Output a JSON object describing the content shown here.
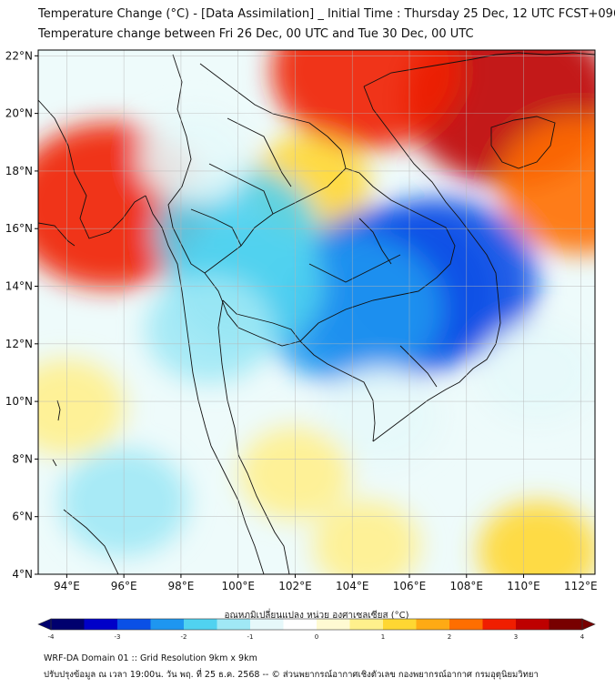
{
  "header": {
    "title_line1": "Temperature Change (°C) - [Data Assimilation] _ Initial Time : Thursday 25 Dec, 12 UTC FCST+096",
    "title_line2": "Temperature change between Fri 26 Dec, 00 UTC and Tue 30 Dec, 00 UTC"
  },
  "map": {
    "lat_labels": [
      "22°N",
      "20°N",
      "18°N",
      "16°N",
      "14°N",
      "12°N",
      "10°N",
      "8°N",
      "6°N",
      "4°N"
    ],
    "lon_labels": [
      "94°E",
      "96°E",
      "98°E",
      "100°E",
      "102°E",
      "104°E",
      "106°E",
      "108°E",
      "110°E",
      "112°E"
    ],
    "lat_values": [
      22,
      20,
      18,
      16,
      14,
      12,
      10,
      8,
      6,
      4
    ],
    "lon_values": [
      94,
      96,
      98,
      100,
      102,
      104,
      106,
      108,
      110,
      112
    ],
    "extent": {
      "lon_min": 93,
      "lon_max": 112.5,
      "lat_min": 4,
      "lat_max": 22.2
    },
    "anomalies": [
      {
        "lon": 109.5,
        "lat": 20.5,
        "value": 3.0
      },
      {
        "lon": 104.5,
        "lat": 21.5,
        "value": 2.6
      },
      {
        "lon": 112,
        "lat": 17.5,
        "value": 2.0
      },
      {
        "lon": 95.5,
        "lat": 16.8,
        "value": 2.8
      },
      {
        "lon": 102.5,
        "lat": 17.5,
        "value": 1.0
      },
      {
        "lon": 105.5,
        "lat": 13.8,
        "value": -3.0
      },
      {
        "lon": 107,
        "lat": 14.2,
        "value": -2.8
      },
      {
        "lon": 104,
        "lat": 13.2,
        "value": -2.4
      },
      {
        "lon": 100,
        "lat": 15.8,
        "value": -2.0
      },
      {
        "lon": 100.3,
        "lat": 14,
        "value": -1.8
      },
      {
        "lon": 99,
        "lat": 12.5,
        "value": -1.2
      },
      {
        "lon": 96,
        "lat": 6.5,
        "value": -1.2
      },
      {
        "lon": 110.5,
        "lat": 11,
        "value": -1.0
      },
      {
        "lon": 98.5,
        "lat": 18.5,
        "value": -0.8
      },
      {
        "lon": 105,
        "lat": 9.5,
        "value": -1.0
      },
      {
        "lon": 102,
        "lat": 7.5,
        "value": 0.8
      },
      {
        "lon": 94,
        "lat": 9.8,
        "value": 0.9
      },
      {
        "lon": 104.5,
        "lat": 5,
        "value": 0.7
      },
      {
        "lon": 110.5,
        "lat": 4.8,
        "value": 1.0
      }
    ]
  },
  "colorbar": {
    "label": "อุณหภูมิเปลี่ยนแปลง หน่วย องศาเซลเซียส (°C)",
    "ticks": [
      "-4",
      "-3",
      "-2",
      "-1",
      "0",
      "1",
      "2",
      "3",
      "4"
    ],
    "tick_values": [
      -4,
      -3,
      -2,
      -1,
      0,
      1,
      2,
      3,
      4
    ],
    "range": [
      -4,
      4
    ],
    "colors": [
      "#00006e",
      "#0000c8",
      "#0a50e6",
      "#1e96f0",
      "#50d2f0",
      "#a0e8f5",
      "#e6f8fa",
      "#ffffff",
      "#fffad2",
      "#fff08c",
      "#ffd732",
      "#ffaa14",
      "#ff6e00",
      "#f01e00",
      "#be0000",
      "#780000"
    ]
  },
  "footer": {
    "line1": "WRF-DA Domain 01 :: Grid Resolution 9km x 9km",
    "line2": "ปรับปรุงข้อมูล ณ เวลา 19:00น. วัน พฤ. ที่ 25 ธ.ค. 2568 -- © ส่วนพยากรณ์อากาศเชิงตัวเลข กองพยากรณ์อากาศ กรมอุตุนิยมวิทยา"
  }
}
